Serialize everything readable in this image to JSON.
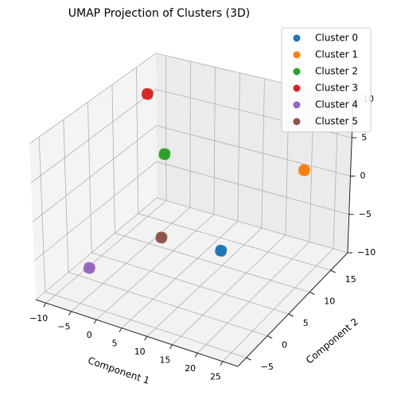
{
  "chart_data": {
    "type": "scatter",
    "title": "UMAP Projection of Clusters (3D)",
    "xlabel": "Component 1",
    "ylabel": "Component 2",
    "zlabel": "",
    "xlim": [
      -12,
      28
    ],
    "ylim": [
      -7,
      19
    ],
    "zlim": [
      -10,
      10
    ],
    "x_ticks": [
      -10,
      -5,
      0,
      5,
      10,
      15,
      20,
      25
    ],
    "y_ticks": [
      -5,
      0,
      5,
      10,
      15
    ],
    "z_ticks": [
      -10,
      -5,
      0,
      5,
      10
    ],
    "grid": true,
    "legend_position": "top-right",
    "series": [
      {
        "name": "Cluster 0",
        "color": "#1f77b4",
        "points": [
          {
            "x": 22,
            "y": -4,
            "z": 2
          }
        ]
      },
      {
        "name": "Cluster 1",
        "color": "#ff7f0e",
        "points": [
          {
            "x": 22,
            "y": 15,
            "z": 2
          }
        ]
      },
      {
        "name": "Cluster 2",
        "color": "#2ca02c",
        "points": [
          {
            "x": 3,
            "y": 5,
            "z": 6
          }
        ]
      },
      {
        "name": "Cluster 3",
        "color": "#d62728",
        "points": [
          {
            "x": -5,
            "y": 10,
            "z": 10
          }
        ]
      },
      {
        "name": "Cluster 4",
        "color": "#9467bd",
        "points": [
          {
            "x": -3,
            "y": -5,
            "z": -5
          }
        ]
      },
      {
        "name": "Cluster 5",
        "color": "#8c564b",
        "points": [
          {
            "x": 5,
            "y": 2,
            "z": -3
          }
        ]
      }
    ]
  }
}
